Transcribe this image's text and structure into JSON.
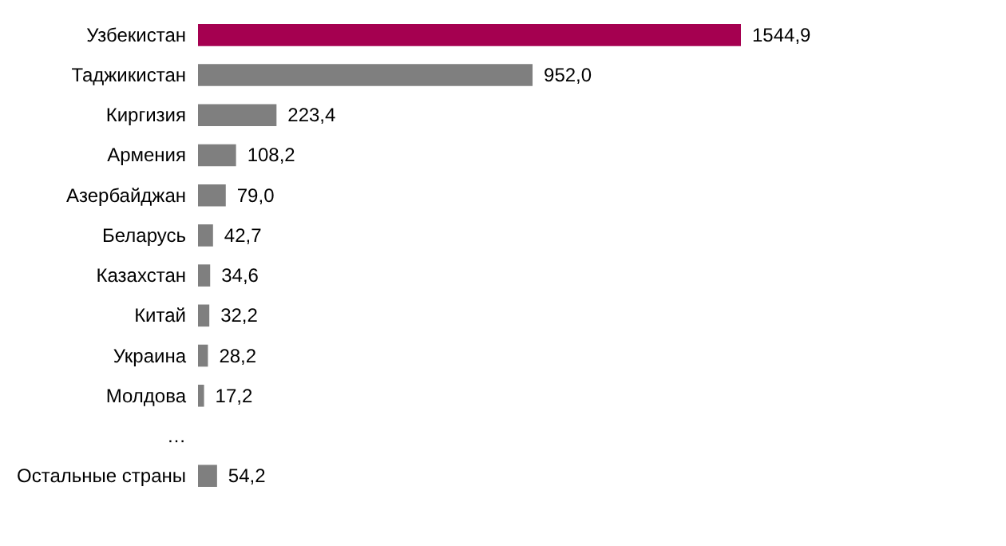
{
  "chart_data": {
    "type": "bar",
    "orientation": "horizontal",
    "categories": [
      "Узбекистан",
      "Таджикистан",
      "Киргизия",
      "Армения",
      "Азербайджан",
      "Беларусь",
      "Казахстан",
      "Китай",
      "Украина",
      "Молдова",
      "…",
      "Остальные страны"
    ],
    "values": [
      1544.9,
      952.0,
      223.4,
      108.2,
      79.0,
      42.7,
      34.6,
      32.2,
      28.2,
      17.2,
      null,
      54.2
    ],
    "value_labels": [
      "1544,9",
      "952,0",
      "223,4",
      "108,2",
      "79,0",
      "42,7",
      "34,6",
      "32,2",
      "28,2",
      "17,2",
      null,
      "54,2"
    ],
    "colors": [
      "#a50050",
      "#7f7f7f",
      "#7f7f7f",
      "#7f7f7f",
      "#7f7f7f",
      "#7f7f7f",
      "#7f7f7f",
      "#7f7f7f",
      "#7f7f7f",
      "#7f7f7f",
      "#7f7f7f",
      "#7f7f7f"
    ]
  }
}
